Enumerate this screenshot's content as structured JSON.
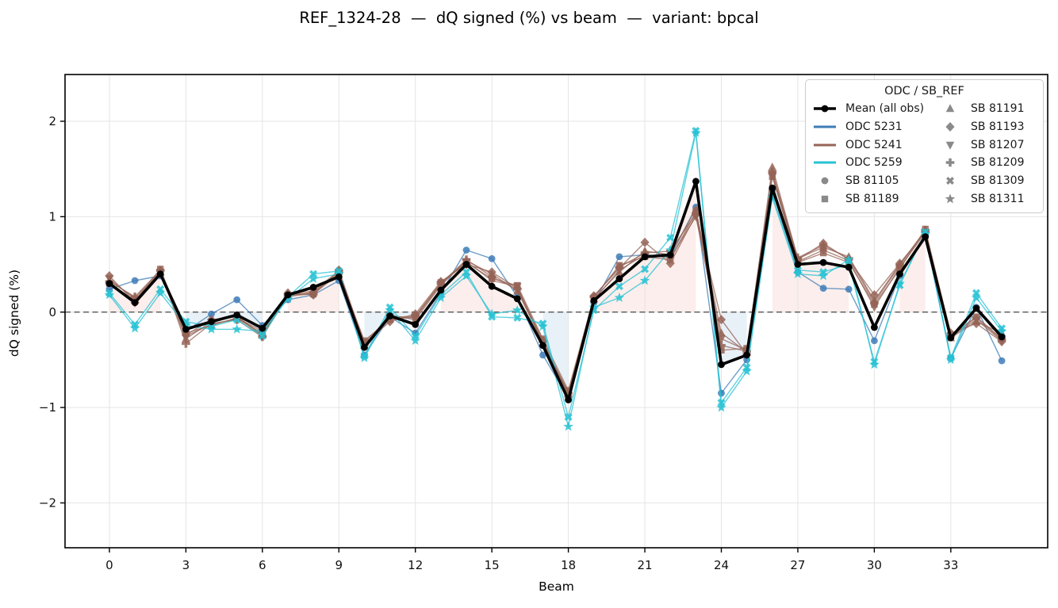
{
  "title": "REF_1324-28  —  dQ signed (%) vs beam  —  variant: bpcal",
  "chart_data": {
    "type": "line",
    "title": "REF_1324-28  —  dQ signed (%) vs beam  —  variant: bpcal",
    "xlabel": "Beam",
    "ylabel": "dQ signed (%)",
    "xlim": [
      -1.74,
      36.8
    ],
    "ylim": [
      -2.47,
      2.49
    ],
    "xticks": [
      0,
      3,
      6,
      9,
      12,
      15,
      18,
      21,
      24,
      27,
      30,
      33
    ],
    "yticks": [
      -2,
      -1,
      0,
      1,
      2
    ],
    "grid": true,
    "zero_line_y": 0,
    "legend_position": "upper right",
    "x": [
      0,
      1,
      2,
      3,
      4,
      5,
      6,
      7,
      8,
      9,
      10,
      11,
      12,
      13,
      14,
      15,
      16,
      17,
      18,
      19,
      20,
      21,
      22,
      23,
      24,
      25,
      26,
      27,
      28,
      29,
      30,
      31,
      32,
      33,
      34,
      35
    ],
    "colors": {
      "mean": "#000000",
      "odc5231": "#3e7cb7",
      "odc5241": "#956457",
      "odc5259": "#27c2d4",
      "sb_marker_gray": "#8a8a8a",
      "fill_positive": "rgba(235,120,110,0.13)",
      "fill_negative": "rgba(110,160,205,0.15)",
      "grid": "#e4e4e4",
      "zero_line": "#555555",
      "spine": "#000000"
    },
    "mean_series": {
      "name": "Mean (all obs)",
      "color_key": "mean",
      "marker": "circle",
      "values": [
        0.3,
        0.1,
        0.4,
        -0.18,
        -0.1,
        -0.03,
        -0.17,
        0.18,
        0.26,
        0.37,
        -0.37,
        -0.04,
        -0.13,
        0.23,
        0.5,
        0.27,
        0.14,
        -0.35,
        -0.92,
        0.12,
        0.35,
        0.58,
        0.6,
        1.37,
        -0.55,
        -0.45,
        1.3,
        0.5,
        0.52,
        0.47,
        -0.16,
        0.4,
        0.79,
        -0.27,
        0.04,
        -0.26
      ]
    },
    "series": [
      {
        "name": "ODC 5231 / SB 81105",
        "odc": "ODC 5231",
        "sb": "SB 81105",
        "color_key": "odc5231",
        "marker": "circle",
        "values": [
          0.24,
          0.33,
          0.38,
          -0.2,
          -0.02,
          0.13,
          -0.14,
          0.13,
          0.18,
          0.33,
          -0.45,
          -0.05,
          -0.22,
          0.2,
          0.65,
          0.56,
          0.16,
          -0.45,
          -0.9,
          0.1,
          0.58,
          0.6,
          0.58,
          1.1,
          -0.85,
          -0.5,
          1.28,
          0.42,
          0.25,
          0.24,
          -0.3,
          0.38,
          0.8,
          -0.48,
          0.05,
          -0.51
        ]
      },
      {
        "name": "ODC 5241 / SB 81189",
        "odc": "ODC 5241",
        "sb": "SB 81189",
        "color_key": "odc5241",
        "marker": "square",
        "values": [
          0.3,
          0.12,
          0.45,
          -0.22,
          -0.14,
          -0.06,
          -0.2,
          0.17,
          0.19,
          0.4,
          -0.3,
          -0.08,
          -0.05,
          0.31,
          0.52,
          0.35,
          0.28,
          -0.28,
          -0.82,
          0.15,
          0.49,
          0.58,
          0.55,
          1.05,
          -0.4,
          -0.38,
          1.42,
          0.52,
          0.62,
          0.52,
          0.08,
          0.45,
          0.87,
          -0.24,
          -0.05,
          -0.28
        ]
      },
      {
        "name": "ODC 5241 / SB 81191",
        "odc": "ODC 5241",
        "sb": "SB 81191",
        "color_key": "odc5241",
        "marker": "triangle-up",
        "values": [
          0.33,
          0.15,
          0.42,
          -0.28,
          -0.1,
          -0.04,
          -0.24,
          0.19,
          0.22,
          0.43,
          -0.35,
          -0.03,
          -0.08,
          0.28,
          0.54,
          0.4,
          0.22,
          -0.32,
          -0.86,
          0.14,
          0.42,
          0.64,
          0.6,
          1.08,
          -0.22,
          -0.42,
          1.52,
          0.56,
          0.68,
          0.58,
          0.12,
          0.5,
          0.85,
          -0.27,
          -0.1,
          -0.22
        ]
      },
      {
        "name": "ODC 5241 / SB 81193",
        "odc": "ODC 5241",
        "sb": "SB 81193",
        "color_key": "odc5241",
        "marker": "diamond",
        "values": [
          0.38,
          0.1,
          0.43,
          -0.24,
          -0.08,
          -0.05,
          -0.25,
          0.2,
          0.18,
          0.44,
          -0.33,
          -0.1,
          -0.02,
          0.32,
          0.5,
          0.42,
          0.25,
          -0.3,
          -0.88,
          0.17,
          0.46,
          0.73,
          0.51,
          1.02,
          -0.08,
          -0.44,
          1.45,
          0.55,
          0.72,
          0.55,
          0.18,
          0.51,
          0.84,
          -0.22,
          -0.12,
          -0.31
        ]
      },
      {
        "name": "ODC 5241 / SB 81207",
        "odc": "ODC 5241",
        "sb": "SB 81207",
        "color_key": "odc5241",
        "marker": "triangle-down",
        "values": [
          0.35,
          0.13,
          0.4,
          -0.25,
          -0.13,
          -0.07,
          -0.22,
          0.16,
          0.21,
          0.41,
          -0.32,
          -0.05,
          -0.06,
          0.29,
          0.53,
          0.33,
          0.27,
          -0.33,
          -0.84,
          0.13,
          0.44,
          0.6,
          0.57,
          1.0,
          -0.28,
          -0.4,
          1.44,
          0.53,
          0.65,
          0.54,
          0.05,
          0.47,
          0.83,
          -0.26,
          -0.08,
          -0.3
        ]
      },
      {
        "name": "ODC 5241 / SB 81209",
        "odc": "ODC 5241",
        "sb": "SB 81209",
        "color_key": "odc5241",
        "marker": "plus",
        "values": [
          0.32,
          0.16,
          0.44,
          -0.33,
          -0.12,
          -0.08,
          -0.26,
          0.18,
          0.2,
          0.42,
          -0.34,
          -0.06,
          -0.04,
          0.3,
          0.55,
          0.37,
          0.24,
          -0.31,
          -0.85,
          0.16,
          0.47,
          0.62,
          0.64,
          1.03,
          -0.35,
          -0.41,
          1.47,
          0.57,
          0.7,
          0.56,
          0.1,
          0.49,
          0.86,
          -0.25,
          -0.06,
          -0.29
        ]
      },
      {
        "name": "ODC 5259 / SB 81309",
        "odc": "ODC 5259",
        "sb": "SB 81309",
        "color_key": "odc5259",
        "marker": "x",
        "values": [
          0.2,
          -0.13,
          0.24,
          -0.1,
          -0.15,
          -0.08,
          -0.25,
          0.16,
          0.4,
          0.43,
          -0.46,
          0.05,
          -0.25,
          0.18,
          0.42,
          -0.05,
          -0.06,
          -0.12,
          -1.1,
          0.02,
          0.27,
          0.45,
          0.78,
          1.9,
          -0.95,
          -0.58,
          1.22,
          0.44,
          0.42,
          0.5,
          -0.52,
          0.28,
          0.84,
          -0.48,
          0.2,
          -0.17
        ]
      },
      {
        "name": "ODC 5259 / SB 81311",
        "odc": "ODC 5259",
        "sb": "SB 81311",
        "color_key": "odc5259",
        "marker": "star",
        "values": [
          0.18,
          -0.17,
          0.2,
          -0.14,
          -0.18,
          -0.18,
          -0.2,
          0.14,
          0.35,
          0.4,
          -0.48,
          0.02,
          -0.3,
          0.15,
          0.38,
          -0.02,
          0.02,
          -0.15,
          -1.2,
          0.05,
          0.15,
          0.33,
          0.65,
          1.88,
          -1.0,
          -0.62,
          1.2,
          0.4,
          0.38,
          0.55,
          -0.55,
          0.3,
          0.82,
          -0.5,
          0.15,
          -0.2
        ]
      }
    ],
    "legend": {
      "title": "ODC / SB_REF",
      "entries": [
        {
          "label": "Mean (all obs)",
          "swatch": "line-dot",
          "color_key": "mean"
        },
        {
          "label": "ODC 5231",
          "swatch": "line",
          "color_key": "odc5231"
        },
        {
          "label": "ODC 5241",
          "swatch": "line",
          "color_key": "odc5241"
        },
        {
          "label": "ODC 5259",
          "swatch": "line",
          "color_key": "odc5259"
        },
        {
          "label": "SB 81105",
          "swatch": "marker",
          "marker": "circle",
          "color_key": "sb_marker_gray"
        },
        {
          "label": "SB 81189",
          "swatch": "marker",
          "marker": "square",
          "color_key": "sb_marker_gray"
        },
        {
          "label": "SB 81191",
          "swatch": "marker",
          "marker": "triangle-up",
          "color_key": "sb_marker_gray"
        },
        {
          "label": "SB 81193",
          "swatch": "marker",
          "marker": "diamond",
          "color_key": "sb_marker_gray"
        },
        {
          "label": "SB 81207",
          "swatch": "marker",
          "marker": "triangle-down",
          "color_key": "sb_marker_gray"
        },
        {
          "label": "SB 81209",
          "swatch": "marker",
          "marker": "plus",
          "color_key": "sb_marker_gray"
        },
        {
          "label": "SB 81309",
          "swatch": "marker",
          "marker": "x",
          "color_key": "sb_marker_gray"
        },
        {
          "label": "SB 81311",
          "swatch": "marker",
          "marker": "star",
          "color_key": "sb_marker_gray"
        }
      ]
    }
  }
}
